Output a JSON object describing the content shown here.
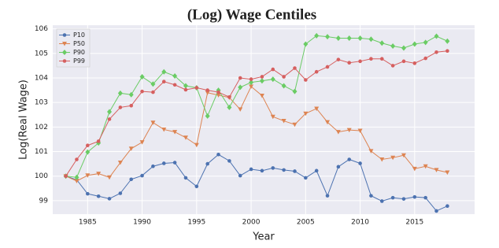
{
  "chart_data": {
    "type": "line",
    "title": "(Log) Wage Centiles",
    "x_label": "Year",
    "y_label": "Log(Real Wage)",
    "x": [
      1983,
      1984,
      1985,
      1986,
      1987,
      1988,
      1989,
      1990,
      1991,
      1992,
      1993,
      1994,
      1995,
      1996,
      1997,
      1998,
      1999,
      2000,
      2001,
      2002,
      2003,
      2004,
      2005,
      2006,
      2007,
      2008,
      2009,
      2010,
      2011,
      2012,
      2013,
      2014,
      2015,
      2016,
      2017,
      2018
    ],
    "series": [
      {
        "name": "P10",
        "color": "#4c72b0",
        "marker": "circle",
        "values": [
          100,
          99.85,
          99.28,
          99.18,
          99.08,
          99.3,
          99.87,
          100.02,
          100.4,
          100.52,
          100.55,
          99.93,
          99.58,
          100.5,
          100.88,
          100.62,
          100.02,
          100.28,
          100.22,
          100.33,
          100.25,
          100.2,
          99.93,
          100.22,
          99.2,
          100.38,
          100.68,
          100.52,
          99.2,
          98.98,
          99.12,
          99.07,
          99.15,
          99.12,
          98.58,
          98.78
        ]
      },
      {
        "name": "P50",
        "color": "#dd8452",
        "marker": "triangle",
        "values": [
          100,
          99.8,
          100.03,
          100.1,
          99.95,
          100.55,
          101.12,
          101.38,
          102.18,
          101.9,
          101.8,
          101.57,
          101.27,
          103.4,
          103.3,
          103.2,
          102.72,
          103.65,
          103.28,
          102.42,
          102.25,
          102.1,
          102.55,
          102.75,
          102.2,
          101.8,
          101.88,
          101.85,
          101.02,
          100.68,
          100.75,
          100.85,
          100.3,
          100.4,
          100.25,
          100.15
        ]
      },
      {
        "name": "P90",
        "color": "#6acc64",
        "marker": "diamond",
        "values": [
          100,
          99.95,
          100.98,
          101.35,
          102.62,
          103.38,
          103.32,
          104.05,
          103.75,
          104.25,
          104.08,
          103.68,
          103.6,
          102.45,
          103.5,
          102.8,
          103.62,
          103.82,
          103.88,
          103.95,
          103.68,
          103.45,
          105.38,
          105.72,
          105.68,
          105.62,
          105.62,
          105.62,
          105.58,
          105.42,
          105.3,
          105.22,
          105.38,
          105.45,
          105.7,
          105.5
        ]
      },
      {
        "name": "P99",
        "color": "#d65f5f",
        "marker": "circle",
        "values": [
          100,
          100.68,
          101.25,
          101.42,
          102.32,
          102.8,
          102.87,
          103.45,
          103.42,
          103.85,
          103.72,
          103.52,
          103.6,
          103.5,
          103.42,
          103.22,
          104.0,
          103.95,
          104.05,
          104.35,
          104.05,
          104.4,
          103.92,
          104.25,
          104.45,
          104.75,
          104.62,
          104.68,
          104.78,
          104.78,
          104.5,
          104.68,
          104.6,
          104.8,
          105.05,
          105.1
        ]
      }
    ],
    "xlim": [
      1981.8,
      2020.5
    ],
    "xticks": [
      1985,
      1990,
      1995,
      2000,
      2005,
      2010,
      2015
    ],
    "ylim": [
      98.45,
      106.15
    ],
    "yticks": [
      99,
      100,
      101,
      102,
      103,
      104,
      105,
      106
    ],
    "grid": true,
    "legend": "upper-left"
  }
}
